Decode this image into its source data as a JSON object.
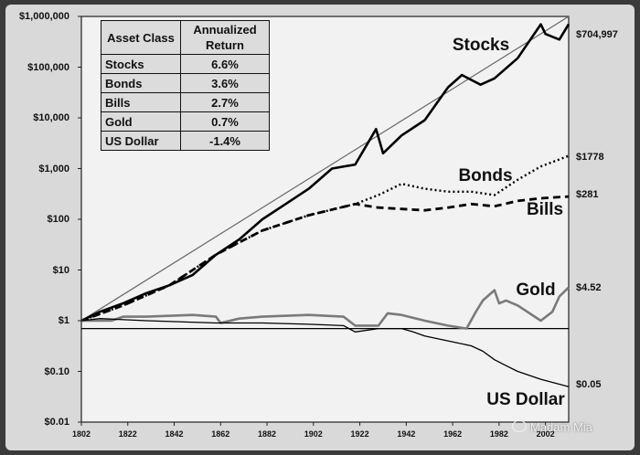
{
  "chart_data": {
    "type": "line",
    "yscale": "log",
    "ylim": [
      0.01,
      1000000
    ],
    "xlim": [
      1802,
      2012
    ],
    "y_tick_labels": [
      "$1,000,000",
      "$100,000",
      "$10,000",
      "$1,000",
      "$100",
      "$10",
      "$1",
      "$0.10",
      "$0.01"
    ],
    "y_tick_values": [
      1000000,
      100000,
      10000,
      1000,
      100,
      10,
      1,
      0.1,
      0.01
    ],
    "x_tick_labels": [
      "1802",
      "1822",
      "1842",
      "1862",
      "1882",
      "1902",
      "1922",
      "1942",
      "1962",
      "1982",
      "2002"
    ],
    "x_tick_values": [
      1802,
      1822,
      1842,
      1862,
      1882,
      1902,
      1922,
      1942,
      1962,
      1982,
      2002
    ],
    "table": {
      "headers": [
        "Asset Class",
        "Annualized Return"
      ],
      "rows": [
        [
          "Stocks",
          "6.6%"
        ],
        [
          "Bonds",
          "3.6%"
        ],
        [
          "Bills",
          "2.7%"
        ],
        [
          "Gold",
          "0.7%"
        ],
        [
          "US Dollar",
          "-1.4%"
        ]
      ]
    },
    "series": [
      {
        "name": "Stocks",
        "end_label": "$704,997",
        "color": "#000000",
        "style": "solid-thick",
        "x": [
          1802,
          1810,
          1820,
          1830,
          1840,
          1850,
          1860,
          1870,
          1880,
          1890,
          1900,
          1910,
          1920,
          1929,
          1932,
          1940,
          1950,
          1960,
          1966,
          1974,
          1980,
          1990,
          2000,
          2002,
          2008,
          2012
        ],
        "y": [
          1,
          1.5,
          2.2,
          3.5,
          5,
          8,
          20,
          40,
          100,
          200,
          400,
          1000,
          1200,
          6000,
          2000,
          4500,
          9000,
          40000,
          70000,
          45000,
          60000,
          150000,
          700000,
          450000,
          350000,
          704997
        ]
      },
      {
        "name": "Bonds",
        "end_label": "$1778",
        "color": "#000000",
        "style": "dotted",
        "x": [
          1802,
          1820,
          1840,
          1850,
          1860,
          1870,
          1880,
          1900,
          1920,
          1930,
          1940,
          1950,
          1960,
          1970,
          1980,
          1990,
          2000,
          2012
        ],
        "y": [
          1,
          2,
          5,
          10,
          20,
          35,
          60,
          120,
          200,
          300,
          500,
          400,
          350,
          350,
          300,
          600,
          1100,
          1778
        ]
      },
      {
        "name": "Bills",
        "end_label": "$281",
        "color": "#000000",
        "style": "dashed",
        "x": [
          1802,
          1820,
          1840,
          1850,
          1860,
          1870,
          1880,
          1900,
          1920,
          1930,
          1940,
          1950,
          1960,
          1970,
          1980,
          1990,
          2000,
          2012
        ],
        "y": [
          1,
          2,
          5,
          10,
          20,
          35,
          60,
          120,
          200,
          170,
          160,
          150,
          170,
          200,
          180,
          230,
          260,
          281
        ]
      },
      {
        "name": "Gold",
        "end_label": "$4.52",
        "color": "#7a7a7a",
        "style": "solid-thick",
        "x": [
          1802,
          1815,
          1820,
          1830,
          1850,
          1860,
          1862,
          1870,
          1880,
          1900,
          1915,
          1920,
          1930,
          1934,
          1940,
          1950,
          1960,
          1968,
          1972,
          1975,
          1980,
          1982,
          1985,
          1990,
          2000,
          2005,
          2008,
          2012
        ],
        "y": [
          1,
          1,
          1.2,
          1.2,
          1.3,
          1.2,
          0.9,
          1.1,
          1.2,
          1.3,
          1.2,
          0.8,
          0.8,
          1.4,
          1.3,
          1,
          0.8,
          0.7,
          1.5,
          2.5,
          4,
          2.2,
          2.5,
          2,
          1,
          1.5,
          3,
          4.52
        ]
      },
      {
        "name": "US Dollar",
        "end_label": "$0.05",
        "color": "#000000",
        "style": "solid-thin",
        "x": [
          1802,
          1810,
          1830,
          1860,
          1880,
          1900,
          1915,
          1920,
          1930,
          1940,
          1945,
          1950,
          1960,
          1970,
          1975,
          1980,
          1985,
          1990,
          2000,
          2012
        ],
        "y": [
          1,
          1.1,
          1,
          0.9,
          0.9,
          0.85,
          0.8,
          0.6,
          0.7,
          0.7,
          0.6,
          0.5,
          0.4,
          0.32,
          0.25,
          0.17,
          0.13,
          0.1,
          0.07,
          0.05
        ]
      }
    ],
    "trend_lines": [
      {
        "x": [
          1802,
          2012
        ],
        "y": [
          1,
          1000000
        ],
        "color": "#666666"
      },
      {
        "x": [
          1802,
          2012
        ],
        "y": [
          0.7,
          0.7
        ],
        "color": "#000000"
      }
    ]
  },
  "watermark": "Madam Mia"
}
